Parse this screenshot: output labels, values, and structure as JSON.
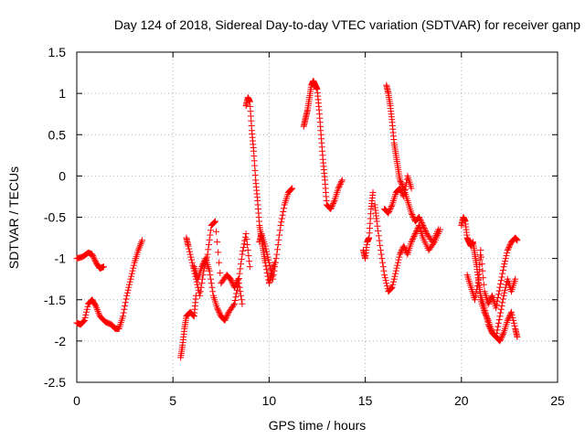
{
  "chart_data": {
    "type": "scatter",
    "title": "Day 124 of 2018, Sidereal Day-to-day VTEC variation (SDTVAR) for receiver ganp",
    "xlabel": "GPS time / hours",
    "ylabel": "SDTVAR / TECUs",
    "xlim": [
      0,
      25
    ],
    "ylim": [
      -2.5,
      1.5
    ],
    "xticks": [
      0,
      5,
      10,
      15,
      20,
      25
    ],
    "yticks": [
      -2.5,
      -2,
      -1.5,
      -1,
      -0.5,
      0,
      0.5,
      1,
      1.5
    ],
    "grid": true,
    "marker": "+",
    "color": "#ff0000",
    "series": [
      {
        "name": "SDTVAR",
        "segments": [
          {
            "x": [
              0.0,
              0.3,
              0.6,
              0.8,
              1.0,
              1.2,
              1.4
            ],
            "y": [
              -1.0,
              -0.98,
              -0.93,
              -0.95,
              -1.05,
              -1.12,
              -1.1
            ]
          },
          {
            "x": [
              0.0,
              0.2,
              0.4,
              0.6,
              0.8,
              1.0,
              1.2,
              1.5,
              1.8,
              2.0,
              2.2,
              2.4,
              2.6,
              2.8,
              3.0,
              3.2,
              3.4
            ],
            "y": [
              -1.78,
              -1.8,
              -1.75,
              -1.55,
              -1.5,
              -1.58,
              -1.7,
              -1.77,
              -1.8,
              -1.85,
              -1.85,
              -1.7,
              -1.45,
              -1.25,
              -1.05,
              -0.9,
              -0.78
            ]
          },
          {
            "x": [
              5.4,
              5.5,
              5.6,
              5.7,
              5.9,
              6.1,
              6.2
            ],
            "y": [
              -2.2,
              -2.05,
              -1.85,
              -1.7,
              -1.65,
              -1.7,
              -1.45
            ]
          },
          {
            "x": [
              5.7,
              5.8,
              6.0,
              6.2,
              6.4,
              6.6,
              6.8,
              7.0,
              7.2,
              7.5,
              7.8,
              8.0,
              8.2,
              8.4,
              8.6
            ],
            "y": [
              -0.75,
              -0.85,
              -1.05,
              -1.25,
              -1.45,
              -1.15,
              -0.95,
              -0.6,
              -0.55,
              -1.3,
              -1.2,
              -1.25,
              -1.35,
              -1.25,
              -1.55
            ]
          },
          {
            "x": [
              6.1,
              6.3,
              6.5,
              6.7,
              6.9,
              7.1,
              7.3,
              7.5,
              7.7,
              7.9,
              8.2,
              8.4,
              8.6,
              8.8,
              9.0
            ],
            "y": [
              -1.1,
              -1.25,
              -1.1,
              -1.0,
              -1.15,
              -1.45,
              -1.6,
              -1.7,
              -1.75,
              -1.65,
              -1.55,
              -1.3,
              -0.95,
              -0.7,
              -1.1
            ]
          },
          {
            "x": [
              8.8,
              8.9,
              9.0,
              9.1,
              9.2,
              9.3,
              9.4,
              9.5,
              9.6,
              9.7,
              9.8,
              10.0,
              10.1,
              10.3
            ],
            "y": [
              0.85,
              0.95,
              0.9,
              0.55,
              0.3,
              -0.05,
              -0.3,
              -0.6,
              -0.75,
              -0.9,
              -1.05,
              -1.3,
              -1.2,
              -1.05
            ]
          },
          {
            "x": [
              9.5,
              9.6,
              9.8,
              10.0,
              10.2,
              10.4,
              10.6,
              10.8,
              11.0,
              11.2
            ],
            "y": [
              -0.8,
              -0.7,
              -0.85,
              -1.05,
              -1.25,
              -0.95,
              -0.6,
              -0.35,
              -0.2,
              -0.15
            ]
          },
          {
            "x": [
              11.8,
              11.9,
              12.0,
              12.1,
              12.2,
              12.3,
              12.4,
              12.5,
              12.6,
              12.7,
              12.8,
              12.9,
              13.0,
              13.2,
              13.4,
              13.6,
              13.8
            ],
            "y": [
              0.6,
              0.7,
              0.8,
              0.95,
              1.1,
              1.15,
              1.1,
              1.05,
              0.8,
              0.5,
              0.2,
              -0.05,
              -0.35,
              -0.4,
              -0.3,
              -0.15,
              -0.05
            ]
          },
          {
            "x": [
              14.9,
              15.0,
              15.1,
              15.2,
              15.3,
              15.4
            ],
            "y": [
              -0.9,
              -1.0,
              -0.8,
              -0.75,
              -0.4,
              -0.2
            ]
          },
          {
            "x": [
              15.5,
              15.6,
              15.8,
              16.0,
              16.2,
              16.4,
              16.6,
              16.8,
              17.0,
              17.2,
              17.4,
              17.6,
              17.8,
              18.0,
              18.3,
              18.6,
              18.9
            ],
            "y": [
              -0.35,
              -0.55,
              -0.9,
              -1.2,
              -1.4,
              -1.35,
              -1.15,
              -0.95,
              -0.85,
              -0.95,
              -0.8,
              -0.7,
              -0.6,
              -0.75,
              -0.9,
              -0.8,
              -0.65
            ]
          },
          {
            "x": [
              16.1,
              16.2,
              16.3,
              16.4,
              16.5,
              16.6,
              16.7,
              16.8,
              17.0,
              17.2,
              17.4,
              17.6,
              17.8,
              18.0,
              18.2,
              18.5,
              18.8
            ],
            "y": [
              1.1,
              1.0,
              0.85,
              0.65,
              0.4,
              0.25,
              0.1,
              -0.05,
              -0.15,
              -0.3,
              -0.45,
              -0.55,
              -0.5,
              -0.6,
              -0.7,
              -0.8,
              -0.65
            ]
          },
          {
            "x": [
              16.0,
              16.2,
              16.4,
              16.6,
              16.8,
              17.0,
              17.2,
              17.4
            ],
            "y": [
              -0.4,
              -0.45,
              -0.35,
              -0.2,
              -0.15,
              -0.25,
              0.0,
              -0.15
            ]
          },
          {
            "x": [
              20.0,
              20.1,
              20.2,
              20.3,
              20.4,
              20.5,
              20.6,
              20.7,
              20.8,
              20.9,
              21.0,
              21.2,
              21.4,
              21.6,
              21.8,
              22.0,
              22.2,
              22.4,
              22.6,
              22.8
            ],
            "y": [
              -0.6,
              -0.5,
              -0.55,
              -0.75,
              -0.8,
              -0.85,
              -0.8,
              -0.95,
              -1.1,
              -1.3,
              -1.45,
              -1.6,
              -1.8,
              -1.9,
              -1.95,
              -1.7,
              -1.45,
              -1.25,
              -1.4,
              -1.25
            ]
          },
          {
            "x": [
              20.3,
              20.5,
              20.7,
              20.9,
              21.0,
              21.2,
              21.4,
              21.6,
              21.8,
              22.0,
              22.2,
              22.4,
              22.6,
              22.8,
              22.9
            ],
            "y": [
              -1.2,
              -1.35,
              -1.5,
              -1.25,
              -0.9,
              -1.4,
              -1.55,
              -1.45,
              -1.6,
              -1.35,
              -1.1,
              -0.9,
              -0.8,
              -0.75,
              -0.78
            ]
          },
          {
            "x": [
              21.0,
              21.2,
              21.4,
              21.6,
              21.8,
              22.0,
              22.2,
              22.4,
              22.6,
              22.8,
              22.9
            ],
            "y": [
              -1.5,
              -1.65,
              -1.75,
              -1.9,
              -1.95,
              -2.0,
              -1.9,
              -1.75,
              -1.65,
              -1.85,
              -1.95
            ]
          }
        ]
      }
    ]
  }
}
